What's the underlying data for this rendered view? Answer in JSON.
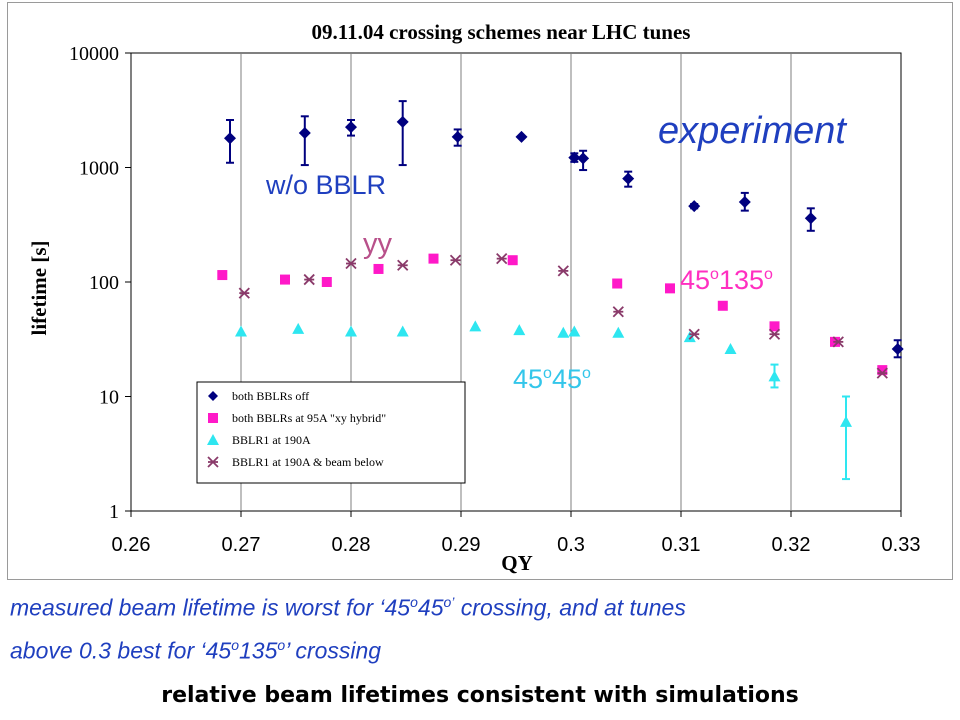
{
  "chart_data": {
    "type": "scatter",
    "title": "09.11.04 crossing schemes near LHC tunes",
    "xlabel": "QY",
    "ylabel": "lifetime [s]",
    "xlim": [
      0.26,
      0.33
    ],
    "ylim": [
      1,
      10000
    ],
    "yscale": "log",
    "grid": "vertical",
    "x_ticks": [
      "0.26",
      "0.27",
      "0.28",
      "0.29",
      "0.3",
      "0.31",
      "0.32",
      "0.33"
    ],
    "y_ticks": [
      "1",
      "10",
      "100",
      "1000",
      "10000"
    ],
    "legend_position": "bottom-left",
    "series": [
      {
        "name": "both BBLRs off",
        "marker": "diamond",
        "color": "#00007f",
        "points": [
          {
            "x": 0.269,
            "y": 1800,
            "lo": 1100,
            "hi": 2600
          },
          {
            "x": 0.2758,
            "y": 2000,
            "lo": 1050,
            "hi": 2800
          },
          {
            "x": 0.28,
            "y": 2250,
            "lo": 1900,
            "hi": 2600
          },
          {
            "x": 0.2847,
            "y": 2500,
            "lo": 1050,
            "hi": 3800
          },
          {
            "x": 0.2897,
            "y": 1850,
            "lo": 1550,
            "hi": 2150
          },
          {
            "x": 0.2955,
            "y": 1850
          },
          {
            "x": 0.3003,
            "y": 1220,
            "lo": 1120,
            "hi": 1330
          },
          {
            "x": 0.3011,
            "y": 1200,
            "lo": 950,
            "hi": 1400
          },
          {
            "x": 0.3052,
            "y": 800,
            "lo": 680,
            "hi": 920
          },
          {
            "x": 0.3112,
            "y": 460,
            "lo": 440,
            "hi": 480
          },
          {
            "x": 0.3158,
            "y": 500,
            "lo": 420,
            "hi": 600
          },
          {
            "x": 0.3218,
            "y": 360,
            "lo": 280,
            "hi": 440
          },
          {
            "x": 0.3297,
            "y": 26,
            "lo": 22,
            "hi": 31
          }
        ]
      },
      {
        "name": "both BBLRs at 95A \"xy hybrid\"",
        "marker": "square",
        "color": "#ff19c8",
        "points": [
          {
            "x": 0.2683,
            "y": 115
          },
          {
            "x": 0.274,
            "y": 105
          },
          {
            "x": 0.2778,
            "y": 100
          },
          {
            "x": 0.2825,
            "y": 130
          },
          {
            "x": 0.2875,
            "y": 160
          },
          {
            "x": 0.2947,
            "y": 155
          },
          {
            "x": 0.3042,
            "y": 97
          },
          {
            "x": 0.309,
            "y": 88
          },
          {
            "x": 0.3138,
            "y": 62
          },
          {
            "x": 0.3185,
            "y": 41
          },
          {
            "x": 0.324,
            "y": 30
          },
          {
            "x": 0.3283,
            "y": 17
          }
        ]
      },
      {
        "name": "BBLR1 at 190A",
        "marker": "triangle",
        "color": "#2ee6f0",
        "points": [
          {
            "x": 0.27,
            "y": 37
          },
          {
            "x": 0.2752,
            "y": 39
          },
          {
            "x": 0.28,
            "y": 37
          },
          {
            "x": 0.2847,
            "y": 37
          },
          {
            "x": 0.2913,
            "y": 41
          },
          {
            "x": 0.2953,
            "y": 38
          },
          {
            "x": 0.2993,
            "y": 36
          },
          {
            "x": 0.3003,
            "y": 37
          },
          {
            "x": 0.3043,
            "y": 36
          },
          {
            "x": 0.3108,
            "y": 33
          },
          {
            "x": 0.3145,
            "y": 26
          },
          {
            "x": 0.3185,
            "y": 15,
            "lo": 12,
            "hi": 19
          },
          {
            "x": 0.325,
            "y": 6,
            "lo": 1.9,
            "hi": 10
          }
        ]
      },
      {
        "name": "BBLR1 at 190A & beam below",
        "marker": "x",
        "color": "#8a3a6a",
        "points": [
          {
            "x": 0.2703,
            "y": 80
          },
          {
            "x": 0.2762,
            "y": 105
          },
          {
            "x": 0.28,
            "y": 145
          },
          {
            "x": 0.2847,
            "y": 140
          },
          {
            "x": 0.2895,
            "y": 155
          },
          {
            "x": 0.2937,
            "y": 160
          },
          {
            "x": 0.2993,
            "y": 125
          },
          {
            "x": 0.3043,
            "y": 55
          },
          {
            "x": 0.3112,
            "y": 35
          },
          {
            "x": 0.3185,
            "y": 35
          },
          {
            "x": 0.3243,
            "y": 30
          },
          {
            "x": 0.3283,
            "y": 16
          }
        ]
      }
    ],
    "annotations": [
      {
        "id": "experiment",
        "text": "experiment",
        "color": "#1f3fbf"
      },
      {
        "id": "wobblr",
        "text": "w/o BBLR",
        "color": "#1f3fbf"
      },
      {
        "id": "yy",
        "text": "yy",
        "color": "#b8508a"
      },
      {
        "id": "a45135",
        "text": "45",
        "sup1": "o",
        "text2": "135",
        "sup2": "o",
        "color": "#ff2fc0"
      },
      {
        "id": "a4545",
        "text": "45",
        "sup1": "o",
        "text2": "45",
        "sup2": "o",
        "color": "#33c6ea"
      }
    ]
  },
  "captions": {
    "line1_a": "measured beam lifetime is worst for ‘45",
    "line1_sup1": "o",
    "line1_b": "45",
    "line1_sup2": "o’",
    "line1_c": " crossing, and at tunes",
    "line2_a": "above 0.3 best for ‘45",
    "line2_sup1": "o",
    "line2_b": "135",
    "line2_sup2": "o",
    "line2_c": "’ crossing",
    "conclusion": "relative beam lifetimes consistent with simulations"
  }
}
